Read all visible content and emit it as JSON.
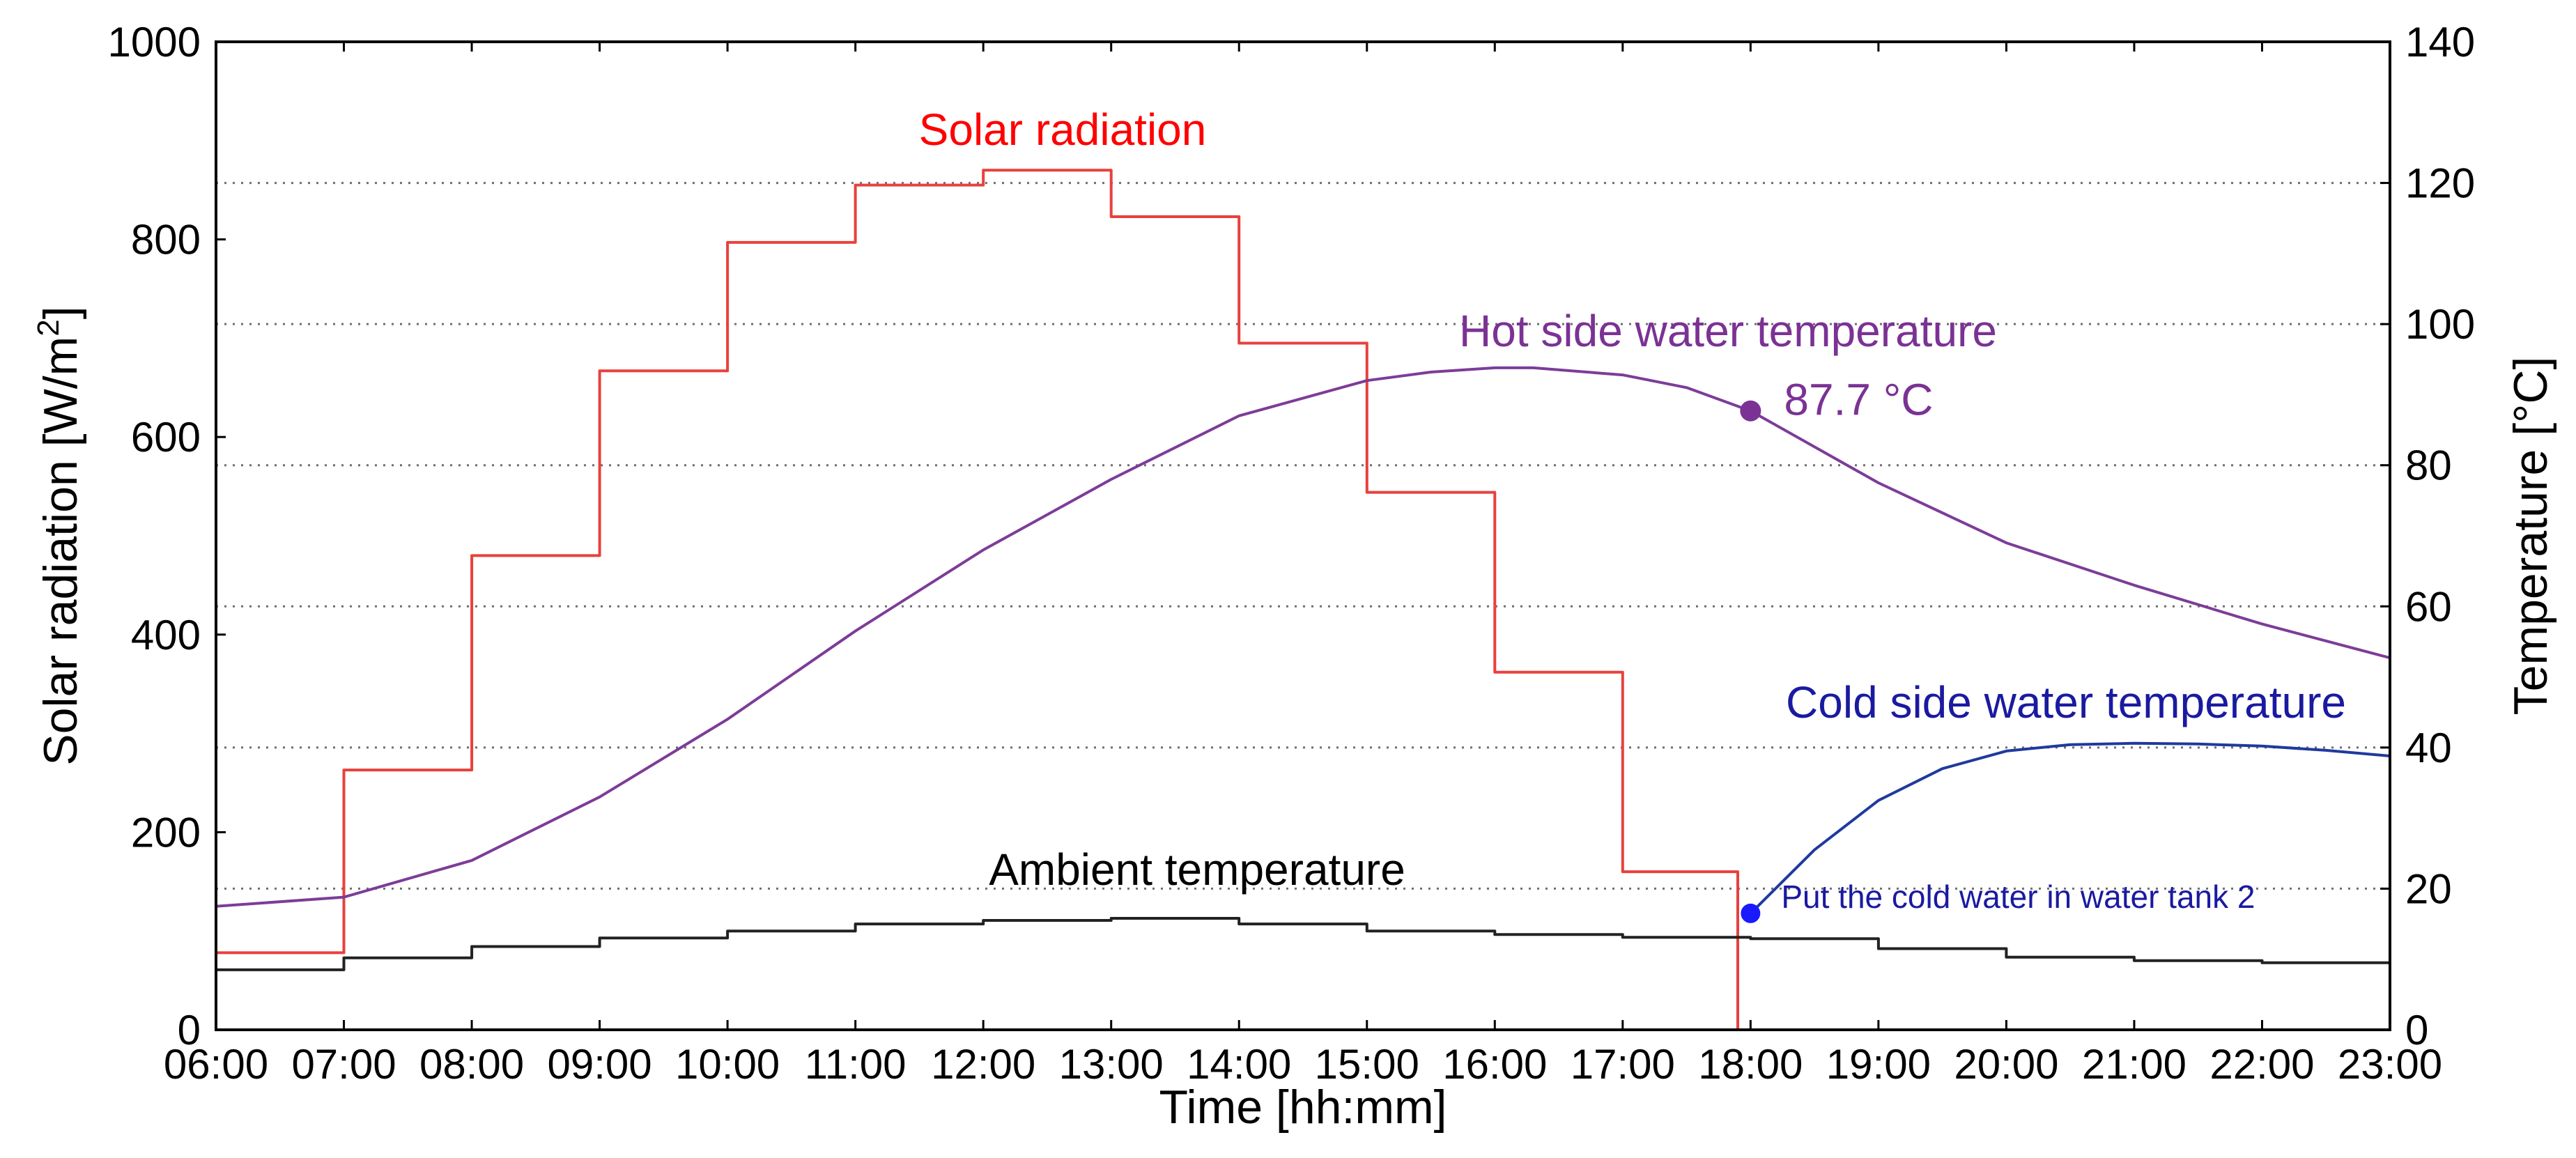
{
  "chart_data": {
    "type": "line",
    "title": "",
    "xlabel": "Time [hh:mm]",
    "ylabel_left": "Solar radiation  [W/m",
    "ylabel_left_sup": "2",
    "ylabel_left_close": "]",
    "ylabel_right": "Temperature [°C]",
    "x_ticks": [
      "06:00",
      "07:00",
      "08:00",
      "09:00",
      "10:00",
      "11:00",
      "12:00",
      "13:00",
      "14:00",
      "15:00",
      "16:00",
      "17:00",
      "18:00",
      "19:00",
      "20:00",
      "21:00",
      "22:00",
      "23:00"
    ],
    "xlim_hours": [
      6,
      23
    ],
    "y_left_ticks": [
      "0",
      "200",
      "400",
      "600",
      "800",
      "1000"
    ],
    "y_right_ticks": [
      "0",
      "20",
      "40",
      "60",
      "80",
      "100",
      "120",
      "140"
    ],
    "ylim_left": [
      0,
      1000
    ],
    "ylim_right": [
      0,
      140
    ],
    "grid": "horizontal dotted at right-axis ticks",
    "series": [
      {
        "name": "Solar radiation",
        "axis": "left",
        "color": "#e8413c",
        "label_color": "#ff0000",
        "step": true,
        "hour": [
          6,
          7,
          8,
          9,
          10,
          11,
          12,
          13,
          14,
          15,
          16,
          17,
          17.9
        ],
        "values": [
          78,
          263,
          480,
          667,
          797,
          855,
          870,
          823,
          695,
          544,
          362,
          160,
          0
        ]
      },
      {
        "name": "Hot side water temperature",
        "axis": "right",
        "color": "#7d3c98",
        "label_color": "#7b3294",
        "step": false,
        "hour": [
          6,
          7,
          8,
          9,
          10,
          11,
          12,
          13,
          14,
          15,
          15.5,
          16,
          16.3,
          17,
          17.5,
          18,
          19,
          20,
          21,
          22,
          23
        ],
        "values": [
          17.5,
          18.8,
          24,
          33,
          44,
          56.5,
          68,
          78,
          87,
          92,
          93.2,
          93.8,
          93.8,
          92.8,
          91,
          87.7,
          77.5,
          69,
          63,
          57.5,
          52.7
        ]
      },
      {
        "name": "Cold side water temperature",
        "axis": "right",
        "color": "#1f3a9e",
        "label_color": "#1a1aa0",
        "step": false,
        "hour": [
          18,
          18.5,
          19,
          19.5,
          20,
          20.5,
          21,
          21.5,
          22,
          22.5,
          23
        ],
        "values": [
          16.5,
          25.5,
          32.5,
          37,
          39.5,
          40.4,
          40.6,
          40.5,
          40.2,
          39.6,
          38.8
        ]
      },
      {
        "name": "Ambient temperature",
        "axis": "right",
        "color": "#222222",
        "label_color": "#000000",
        "step": true,
        "hour": [
          6,
          7,
          8,
          9,
          10,
          11,
          12,
          13,
          14,
          15,
          16,
          17,
          18,
          19,
          20,
          21,
          22
        ],
        "values": [
          8.5,
          10.2,
          11.8,
          13,
          14,
          15,
          15.5,
          15.8,
          15,
          14,
          13.5,
          13.1,
          12.9,
          11.5,
          10.3,
          9.8,
          9.5
        ]
      }
    ],
    "annotations": [
      {
        "text": "87.7 °C",
        "hour": 18,
        "value": 87.7,
        "axis": "right",
        "color": "#7b3294"
      },
      {
        "text": "Put the cold water in water tank 2",
        "hour": 18,
        "value": 16.5,
        "axis": "right",
        "color": "#1a1aa0",
        "marker_color": "#1a1aff"
      }
    ]
  }
}
